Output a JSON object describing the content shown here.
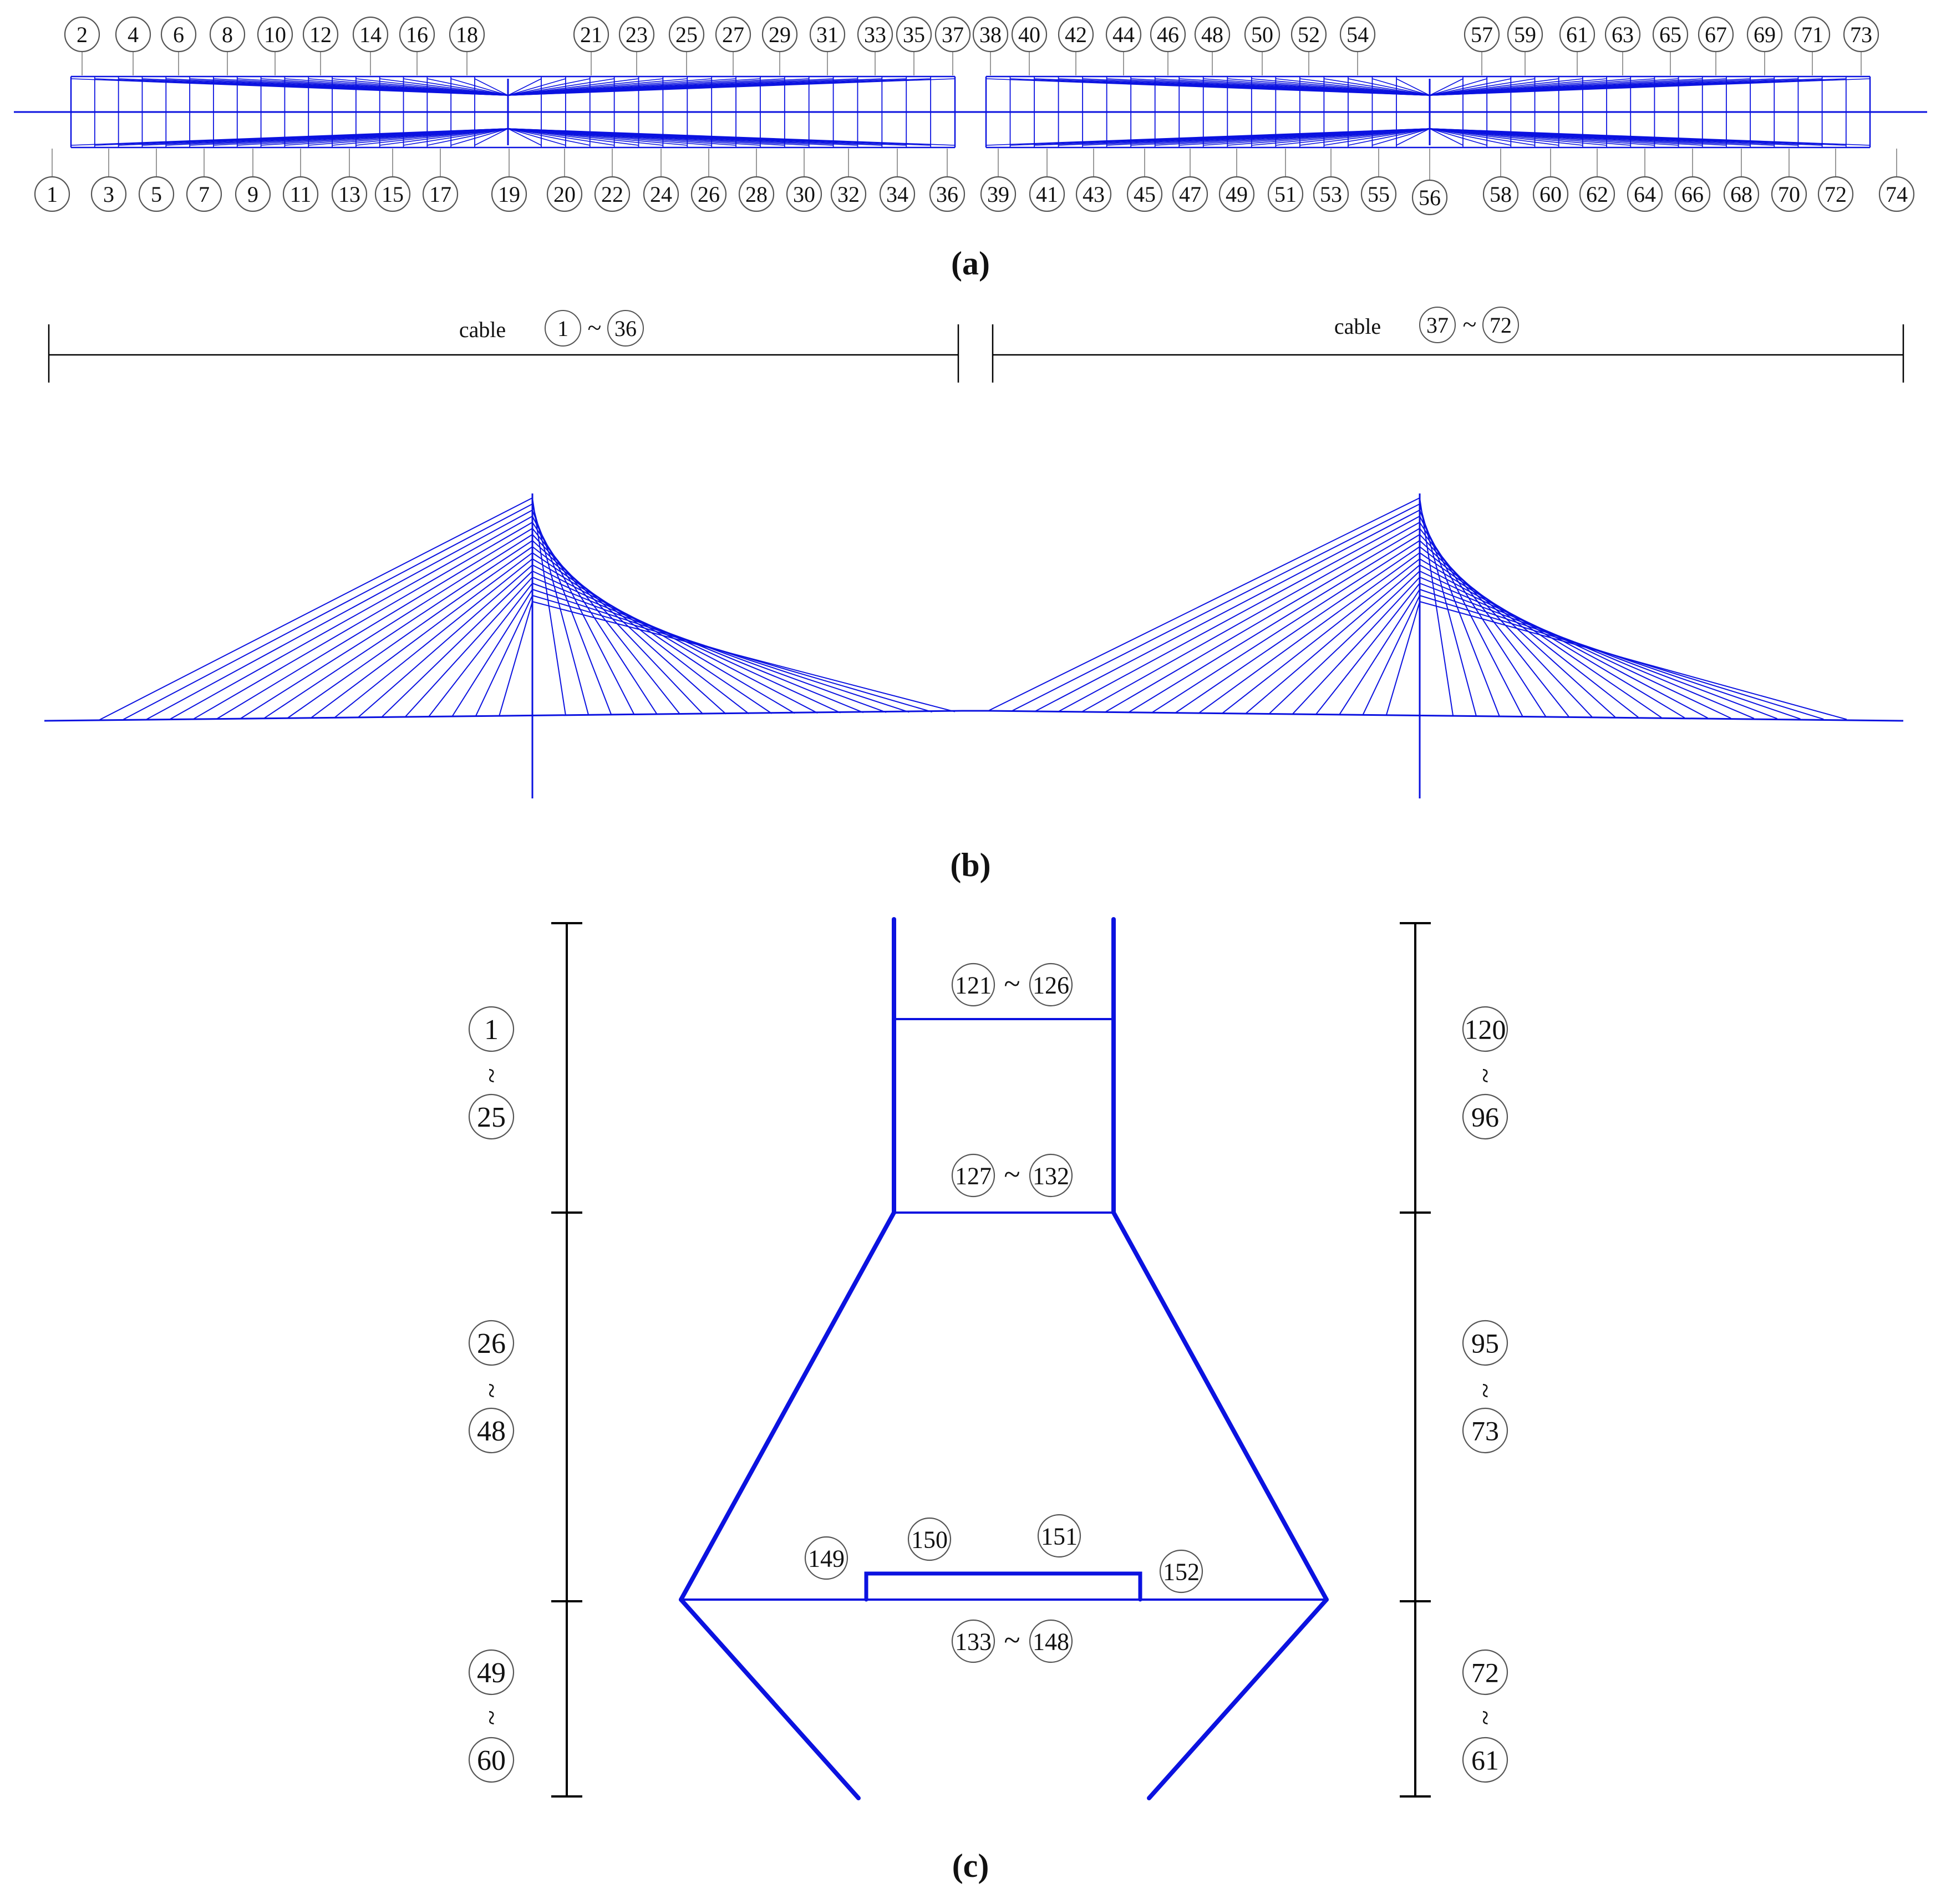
{
  "colors": {
    "structure": "#0b12e0",
    "leader": "#9a9a9a",
    "bubble": "#555555",
    "text": "#111111",
    "dimension": "#000000"
  },
  "panel_a": {
    "caption": "(a)",
    "top_labels": [
      "2",
      "4",
      "6",
      "8",
      "10",
      "12",
      "14",
      "16",
      "18",
      "21",
      "23",
      "25",
      "27",
      "29",
      "31",
      "33",
      "35",
      "37",
      "38",
      "40",
      "42",
      "44",
      "46",
      "48",
      "50",
      "52",
      "54",
      "57",
      "59",
      "61",
      "63",
      "65",
      "67",
      "69",
      "71",
      "73"
    ],
    "bottom_labels": [
      "1",
      "3",
      "5",
      "7",
      "9",
      "11",
      "13",
      "15",
      "17",
      "19",
      "20",
      "22",
      "24",
      "26",
      "28",
      "30",
      "32",
      "34",
      "36",
      "39",
      "41",
      "43",
      "45",
      "47",
      "49",
      "51",
      "53",
      "55",
      "56",
      "58",
      "60",
      "62",
      "64",
      "66",
      "68",
      "70",
      "72",
      "74"
    ]
  },
  "panel_b": {
    "caption": "(b)",
    "left_group": {
      "word": "cable",
      "from": "1",
      "sep": "~",
      "to": "36"
    },
    "right_group": {
      "word": "cable",
      "from": "37",
      "sep": "~",
      "to": "72"
    }
  },
  "panel_c": {
    "caption": "(c)",
    "left_ranges": [
      {
        "from": "1",
        "sep": "~",
        "to": "25"
      },
      {
        "from": "26",
        "sep": "~",
        "to": "48"
      },
      {
        "from": "49",
        "sep": "~",
        "to": "60"
      }
    ],
    "right_ranges": [
      {
        "from": "120",
        "sep": "~",
        "to": "96"
      },
      {
        "from": "95",
        "sep": "~",
        "to": "73"
      },
      {
        "from": "72",
        "sep": "~",
        "to": "61"
      }
    ],
    "beam_labels": [
      {
        "from": "121",
        "sep": "~",
        "to": "126"
      },
      {
        "from": "127",
        "sep": "~",
        "to": "132"
      },
      {
        "from": "133",
        "sep": "~",
        "to": "148"
      }
    ],
    "single_labels": [
      "149",
      "150",
      "151",
      "152"
    ]
  }
}
